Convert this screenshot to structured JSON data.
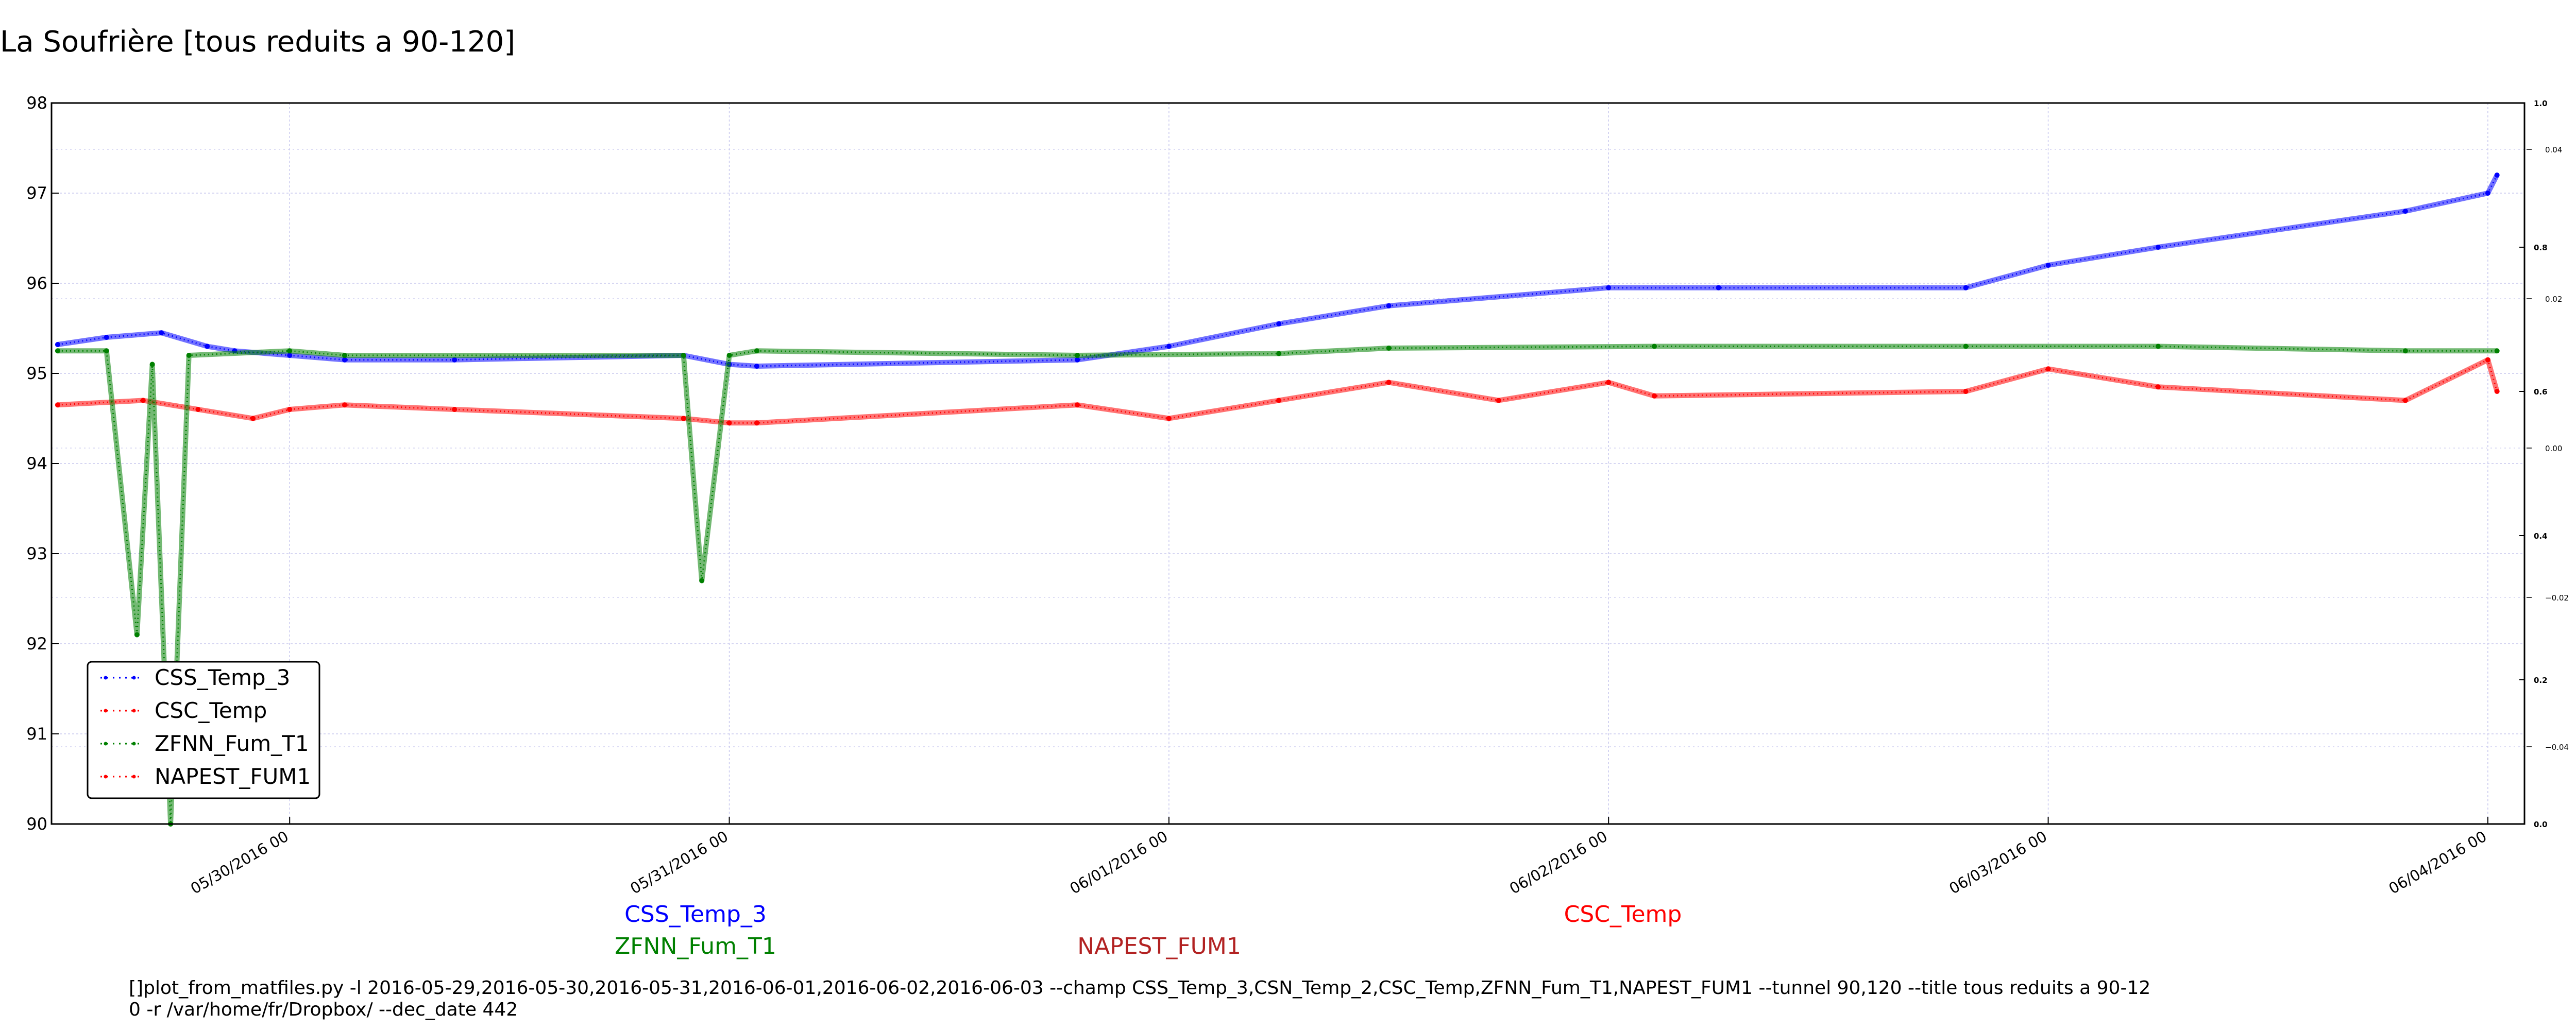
{
  "chart_data": {
    "type": "line",
    "title": "La Soufrière [tous reduits a 90-120]",
    "ylim": [
      90,
      98
    ],
    "yticks": [
      "90",
      "91",
      "92",
      "93",
      "94",
      "95",
      "96",
      "97",
      "98"
    ],
    "right_axis_ticks": {
      "bold": [
        "0.0",
        "0.2",
        "0.4",
        "0.6",
        "0.8",
        "1.0"
      ],
      "light": [
        "−0.04",
        "−0.02",
        "0.00",
        "0.02",
        "0.04"
      ]
    },
    "xlim": [
      "2016-05-29 11:00",
      "2016-06-04 02:00"
    ],
    "xticks": [
      "05/30/2016 00",
      "05/31/2016 00",
      "06/01/2016 00",
      "06/02/2016 00",
      "06/03/2016 00",
      "06/04/2016 00"
    ],
    "grid": true,
    "legend_position": "lower-left",
    "series": [
      {
        "name": "CSS_Temp_3",
        "color": "#0000ff",
        "points": [
          [
            "2016-05-29 11:20",
            95.32
          ],
          [
            "2016-05-29 14:00",
            95.4
          ],
          [
            "2016-05-29 17:00",
            95.45
          ],
          [
            "2016-05-29 19:30",
            95.3
          ],
          [
            "2016-05-29 21:00",
            95.25
          ],
          [
            "2016-05-30 00:00",
            95.2
          ],
          [
            "2016-05-30 03:00",
            95.15
          ],
          [
            "2016-05-30 09:00",
            95.15
          ],
          [
            "2016-05-30 21:30",
            95.2
          ],
          [
            "2016-05-31 00:00",
            95.1
          ],
          [
            "2016-05-31 01:30",
            95.08
          ],
          [
            "2016-05-31 19:00",
            95.15
          ],
          [
            "2016-06-01 00:00",
            95.3
          ],
          [
            "2016-06-01 06:00",
            95.55
          ],
          [
            "2016-06-01 12:00",
            95.75
          ],
          [
            "2016-06-02 00:00",
            95.95
          ],
          [
            "2016-06-02 06:00",
            95.95
          ],
          [
            "2016-06-02 19:30",
            95.95
          ],
          [
            "2016-06-03 00:00",
            96.2
          ],
          [
            "2016-06-03 06:00",
            96.4
          ],
          [
            "2016-06-03 19:30",
            96.8
          ],
          [
            "2016-06-04 00:00",
            97.0
          ],
          [
            "2016-06-04 00:30",
            97.2
          ]
        ]
      },
      {
        "name": "CSC_Temp",
        "color": "#ff0000",
        "points": [
          [
            "2016-05-29 11:20",
            94.65
          ],
          [
            "2016-05-29 16:00",
            94.7
          ],
          [
            "2016-05-29 19:00",
            94.6
          ],
          [
            "2016-05-29 22:00",
            94.5
          ],
          [
            "2016-05-30 00:00",
            94.6
          ],
          [
            "2016-05-30 03:00",
            94.65
          ],
          [
            "2016-05-30 09:00",
            94.6
          ],
          [
            "2016-05-30 21:30",
            94.5
          ],
          [
            "2016-05-31 00:00",
            94.45
          ],
          [
            "2016-05-31 01:30",
            94.45
          ],
          [
            "2016-05-31 19:00",
            94.65
          ],
          [
            "2016-06-01 00:00",
            94.5
          ],
          [
            "2016-06-01 06:00",
            94.7
          ],
          [
            "2016-06-01 12:00",
            94.9
          ],
          [
            "2016-06-01 18:00",
            94.7
          ],
          [
            "2016-06-02 00:00",
            94.9
          ],
          [
            "2016-06-02 02:30",
            94.75
          ],
          [
            "2016-06-02 19:30",
            94.8
          ],
          [
            "2016-06-03 00:00",
            95.05
          ],
          [
            "2016-06-03 06:00",
            94.85
          ],
          [
            "2016-06-03 19:30",
            94.7
          ],
          [
            "2016-06-04 00:00",
            95.15
          ],
          [
            "2016-06-04 00:30",
            94.8
          ]
        ]
      },
      {
        "name": "ZFNN_Fum_T1",
        "color": "#008000",
        "points": [
          [
            "2016-05-29 11:20",
            95.25
          ],
          [
            "2016-05-29 14:00",
            95.25
          ],
          [
            "2016-05-29 15:40",
            92.1
          ],
          [
            "2016-05-29 16:30",
            95.1
          ],
          [
            "2016-05-29 17:30",
            90.0
          ],
          [
            "2016-05-29 18:30",
            95.2
          ],
          [
            "2016-05-30 00:00",
            95.25
          ],
          [
            "2016-05-30 03:00",
            95.2
          ],
          [
            "2016-05-30 21:30",
            95.2
          ],
          [
            "2016-05-30 22:30",
            92.7
          ],
          [
            "2016-05-31 00:00",
            95.2
          ],
          [
            "2016-05-31 01:30",
            95.25
          ],
          [
            "2016-05-31 19:00",
            95.2
          ],
          [
            "2016-06-01 06:00",
            95.22
          ],
          [
            "2016-06-01 12:00",
            95.28
          ],
          [
            "2016-06-02 02:30",
            95.3
          ],
          [
            "2016-06-02 19:30",
            95.3
          ],
          [
            "2016-06-03 06:00",
            95.3
          ],
          [
            "2016-06-03 19:30",
            95.25
          ],
          [
            "2016-06-04 00:30",
            95.25
          ]
        ]
      },
      {
        "name": "NAPEST_FUM1",
        "color": "#ff0000",
        "points": []
      }
    ]
  },
  "series_labels": [
    "CSS_Temp_3",
    "ZFNN_Fum_T1",
    "NAPEST_FUM1",
    "CSC_Temp"
  ],
  "command_line": [
    "[]plot_from_matfiles.py -l 2016-05-29,2016-05-30,2016-05-31,2016-06-01,2016-06-02,2016-06-03 --champ CSS_Temp_3,CSN_Temp_2,CSC_Temp,ZFNN_Fum_T1,NAPEST_FUM1 --tunnel 90,120 --title tous reduits a 90-12",
    "0 -r /var/home/fr/Dropbox/ --dec_date 442"
  ]
}
